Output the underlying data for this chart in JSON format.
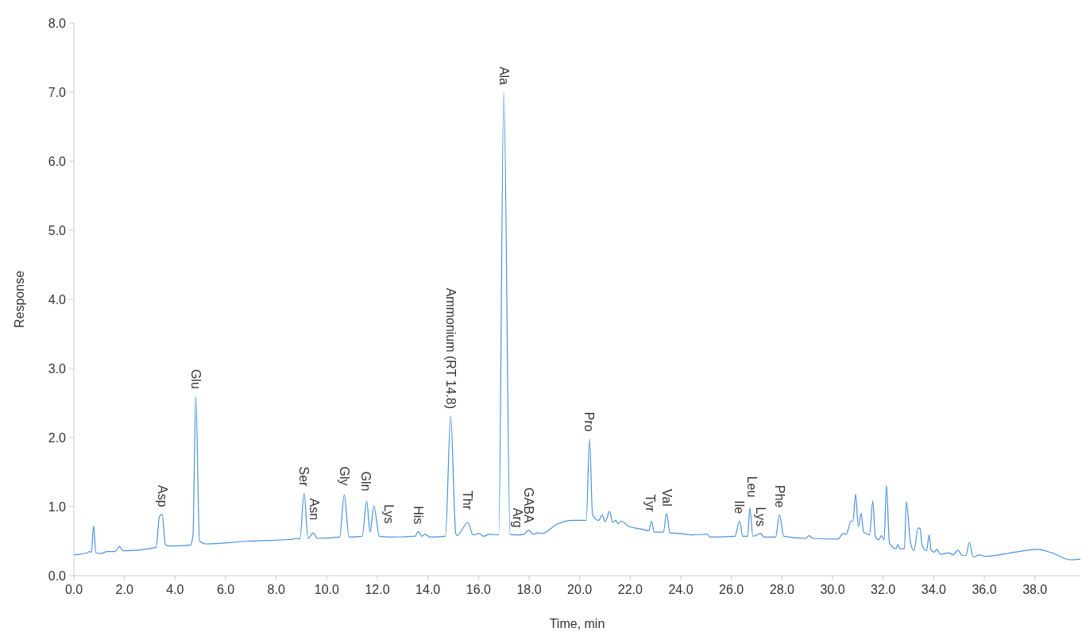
{
  "chart_data": {
    "type": "line",
    "xlabel": "Time, min",
    "ylabel": "Response",
    "xlim": [
      0,
      39.8
    ],
    "ylim": [
      0,
      8
    ],
    "xticks": [
      {
        "value": 0,
        "label": "0.0"
      },
      {
        "value": 2,
        "label": "2.0"
      },
      {
        "value": 4,
        "label": "4.0"
      },
      {
        "value": 6,
        "label": "6.0"
      },
      {
        "value": 8,
        "label": "8.0"
      },
      {
        "value": 10,
        "label": "10.0"
      },
      {
        "value": 12,
        "label": "12.0"
      },
      {
        "value": 14,
        "label": "14.0"
      },
      {
        "value": 16,
        "label": "16.0"
      },
      {
        "value": 18,
        "label": "18.0"
      },
      {
        "value": 20,
        "label": "20.0"
      },
      {
        "value": 22,
        "label": "22.0"
      },
      {
        "value": 24,
        "label": "24.0"
      },
      {
        "value": 26,
        "label": "26.0"
      },
      {
        "value": 28,
        "label": "28.0"
      },
      {
        "value": 30,
        "label": "30.0"
      },
      {
        "value": 32,
        "label": "32.0"
      },
      {
        "value": 34,
        "label": "34.0"
      },
      {
        "value": 36,
        "label": "36.0"
      },
      {
        "value": 38,
        "label": "38.0"
      }
    ],
    "yticks": [
      {
        "value": 0,
        "label": "0.0"
      },
      {
        "value": 1,
        "label": "1.0"
      },
      {
        "value": 2,
        "label": "2.0"
      },
      {
        "value": 3,
        "label": "3.0"
      },
      {
        "value": 4,
        "label": "4.0"
      },
      {
        "value": 5,
        "label": "5.0"
      },
      {
        "value": 6,
        "label": "6.0"
      },
      {
        "value": 7,
        "label": "7.0"
      },
      {
        "value": 8,
        "label": "8.0"
      }
    ],
    "grid": false,
    "marker": "none",
    "line_style": "solid",
    "series": [
      {
        "color": "#4a90d9",
        "x": [
          0,
          0.53,
          0.61,
          0.69,
          0.78,
          0.87,
          1.06,
          1.32,
          1.63,
          1.81,
          1.94,
          3.25,
          3.38,
          3.49,
          3.62,
          3.77,
          4.61,
          4.71,
          4.82,
          4.97,
          5.24,
          6.91,
          8.37,
          8.68,
          8.78,
          8.94,
          9.1,
          9.26,
          9.47,
          9.62,
          10.51,
          10.69,
          10.88,
          11.4,
          11.58,
          11.71,
          11.86,
          12.08,
          12.55,
          13.49,
          13.62,
          13.75,
          13.89,
          14.07,
          14.69,
          14.9,
          15.1,
          15.15,
          15.58,
          15.78,
          16.03,
          16.19,
          16.43,
          16.8,
          17.0,
          17.25,
          17.55,
          17.8,
          17.98,
          18.16,
          18.34,
          18.5,
          19.13,
          19.71,
          20.26,
          20.39,
          20.51,
          20.75,
          20.89,
          21.01,
          21.18,
          21.31,
          21.43,
          21.52,
          21.64,
          21.95,
          22.37,
          22.74,
          22.84,
          22.95,
          23.31,
          23.44,
          23.57,
          23.94,
          24.46,
          25.04,
          25.15,
          26.14,
          26.32,
          26.45,
          26.64,
          26.73,
          26.85,
          27.16,
          27.28,
          27.75,
          27.9,
          28.07,
          28.96,
          29.06,
          29.22,
          30.21,
          30.42,
          30.54,
          30.73,
          30.81,
          30.91,
          31.02,
          31.13,
          31.23,
          31.46,
          31.59,
          31.69,
          31.83,
          31.93,
          32.04,
          32.13,
          32.25,
          32.51,
          32.58,
          32.66,
          32.84,
          32.92,
          33.08,
          33.22,
          33.38,
          33.46,
          33.54,
          33.72,
          33.82,
          33.89,
          34.02,
          34.11,
          34.28,
          34.6,
          34.76,
          34.96,
          35.12,
          35.27,
          35.41,
          35.56,
          35.8,
          36.06,
          37.21,
          38.1,
          38.67,
          39.4,
          39.78
        ],
        "values": [
          0.3,
          0.33,
          0.35,
          0.34,
          0.72,
          0.33,
          0.32,
          0.35,
          0.35,
          0.42,
          0.36,
          0.41,
          0.85,
          0.89,
          0.45,
          0.43,
          0.44,
          0.59,
          2.6,
          0.5,
          0.46,
          0.5,
          0.52,
          0.53,
          0.54,
          0.53,
          1.19,
          0.54,
          0.62,
          0.54,
          0.56,
          1.17,
          0.56,
          0.57,
          1.08,
          0.63,
          1.01,
          0.57,
          0.56,
          0.57,
          0.64,
          0.57,
          0.6,
          0.56,
          0.57,
          2.31,
          0.61,
          0.58,
          0.77,
          0.59,
          0.61,
          0.57,
          0.6,
          0.59,
          7.0,
          0.6,
          0.59,
          0.6,
          0.66,
          0.6,
          0.62,
          0.61,
          0.75,
          0.8,
          0.8,
          1.98,
          0.88,
          0.8,
          0.88,
          0.78,
          0.93,
          0.77,
          0.8,
          0.75,
          0.79,
          0.71,
          0.68,
          0.65,
          0.79,
          0.63,
          0.63,
          0.9,
          0.62,
          0.61,
          0.59,
          0.6,
          0.56,
          0.57,
          0.79,
          0.57,
          0.57,
          0.98,
          0.57,
          0.61,
          0.56,
          0.56,
          0.88,
          0.57,
          0.54,
          0.58,
          0.54,
          0.53,
          0.61,
          0.6,
          0.79,
          0.79,
          1.18,
          0.71,
          0.9,
          0.63,
          0.59,
          1.08,
          0.57,
          0.52,
          0.58,
          0.52,
          1.31,
          0.47,
          0.39,
          0.45,
          0.39,
          0.39,
          1.07,
          0.48,
          0.36,
          0.69,
          0.68,
          0.44,
          0.36,
          0.59,
          0.38,
          0.34,
          0.38,
          0.31,
          0.33,
          0.3,
          0.37,
          0.29,
          0.29,
          0.48,
          0.27,
          0.3,
          0.28,
          0.34,
          0.38,
          0.33,
          0.23,
          0.24
        ]
      }
    ],
    "annotations": [
      {
        "text": "Asp",
        "x": 3.5,
        "y": 0.89
      },
      {
        "text": "Glu",
        "x": 4.82,
        "y": 2.6
      },
      {
        "text": "Ser",
        "x": 9.1,
        "y": 1.19
      },
      {
        "text": "Asn",
        "x": 9.5,
        "y": 0.7
      },
      {
        "text": "Gly",
        "x": 10.69,
        "y": 1.2
      },
      {
        "text": "Gln",
        "x": 11.55,
        "y": 1.12
      },
      {
        "text": "Lys",
        "x": 12.45,
        "y": 0.65
      },
      {
        "text": "His",
        "x": 13.62,
        "y": 0.64
      },
      {
        "text": "Ammonium (RT 14.8)",
        "x": 14.9,
        "y": 2.31
      },
      {
        "text": "Thr",
        "x": 15.58,
        "y": 0.85
      },
      {
        "text": "Ala",
        "x": 17.0,
        "y": 7.0
      },
      {
        "text": "Arg",
        "x": 17.55,
        "y": 0.59
      },
      {
        "text": "GABA",
        "x": 17.98,
        "y": 0.66
      },
      {
        "text": "Pro",
        "x": 20.39,
        "y": 1.98
      },
      {
        "text": "Tyr",
        "x": 22.79,
        "y": 0.82
      },
      {
        "text": "Val",
        "x": 23.44,
        "y": 0.9
      },
      {
        "text": "Ile",
        "x": 26.32,
        "y": 0.79
      },
      {
        "text": "Leu",
        "x": 26.8,
        "y": 1.03
      },
      {
        "text": "Lys",
        "x": 27.16,
        "y": 0.61
      },
      {
        "text": "Phe",
        "x": 27.9,
        "y": 0.88
      }
    ]
  }
}
